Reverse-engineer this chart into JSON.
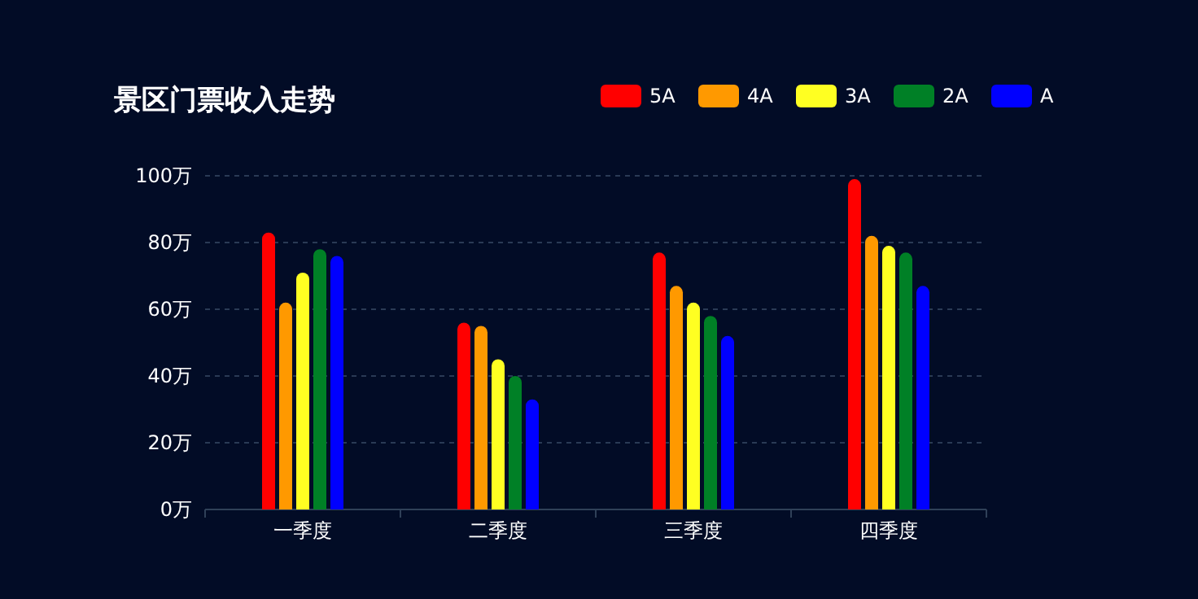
{
  "chart_data": {
    "type": "bar",
    "title": "景区门票收入走势",
    "categories": [
      "一季度",
      "二季度",
      "三季度",
      "四季度"
    ],
    "series": [
      {
        "name": "5A",
        "color": "#ff0000",
        "values": [
          83,
          56,
          77,
          99
        ]
      },
      {
        "name": "4A",
        "color": "#ff9900",
        "values": [
          62,
          55,
          67,
          82
        ]
      },
      {
        "name": "3A",
        "color": "#ffff22",
        "values": [
          71,
          45,
          62,
          79
        ]
      },
      {
        "name": "2A",
        "color": "#008026",
        "values": [
          78,
          40,
          58,
          77
        ]
      },
      {
        "name": "A",
        "color": "#0000ff",
        "values": [
          76,
          33,
          52,
          67
        ]
      }
    ],
    "ylim": [
      0,
      100
    ],
    "yticks": [
      {
        "value": 0,
        "label": "0万"
      },
      {
        "value": 20,
        "label": "20万"
      },
      {
        "value": 40,
        "label": "40万"
      },
      {
        "value": 60,
        "label": "60万"
      },
      {
        "value": 80,
        "label": "80万"
      },
      {
        "value": 100,
        "label": "100万"
      }
    ],
    "grid": "y",
    "legend": "top right"
  }
}
